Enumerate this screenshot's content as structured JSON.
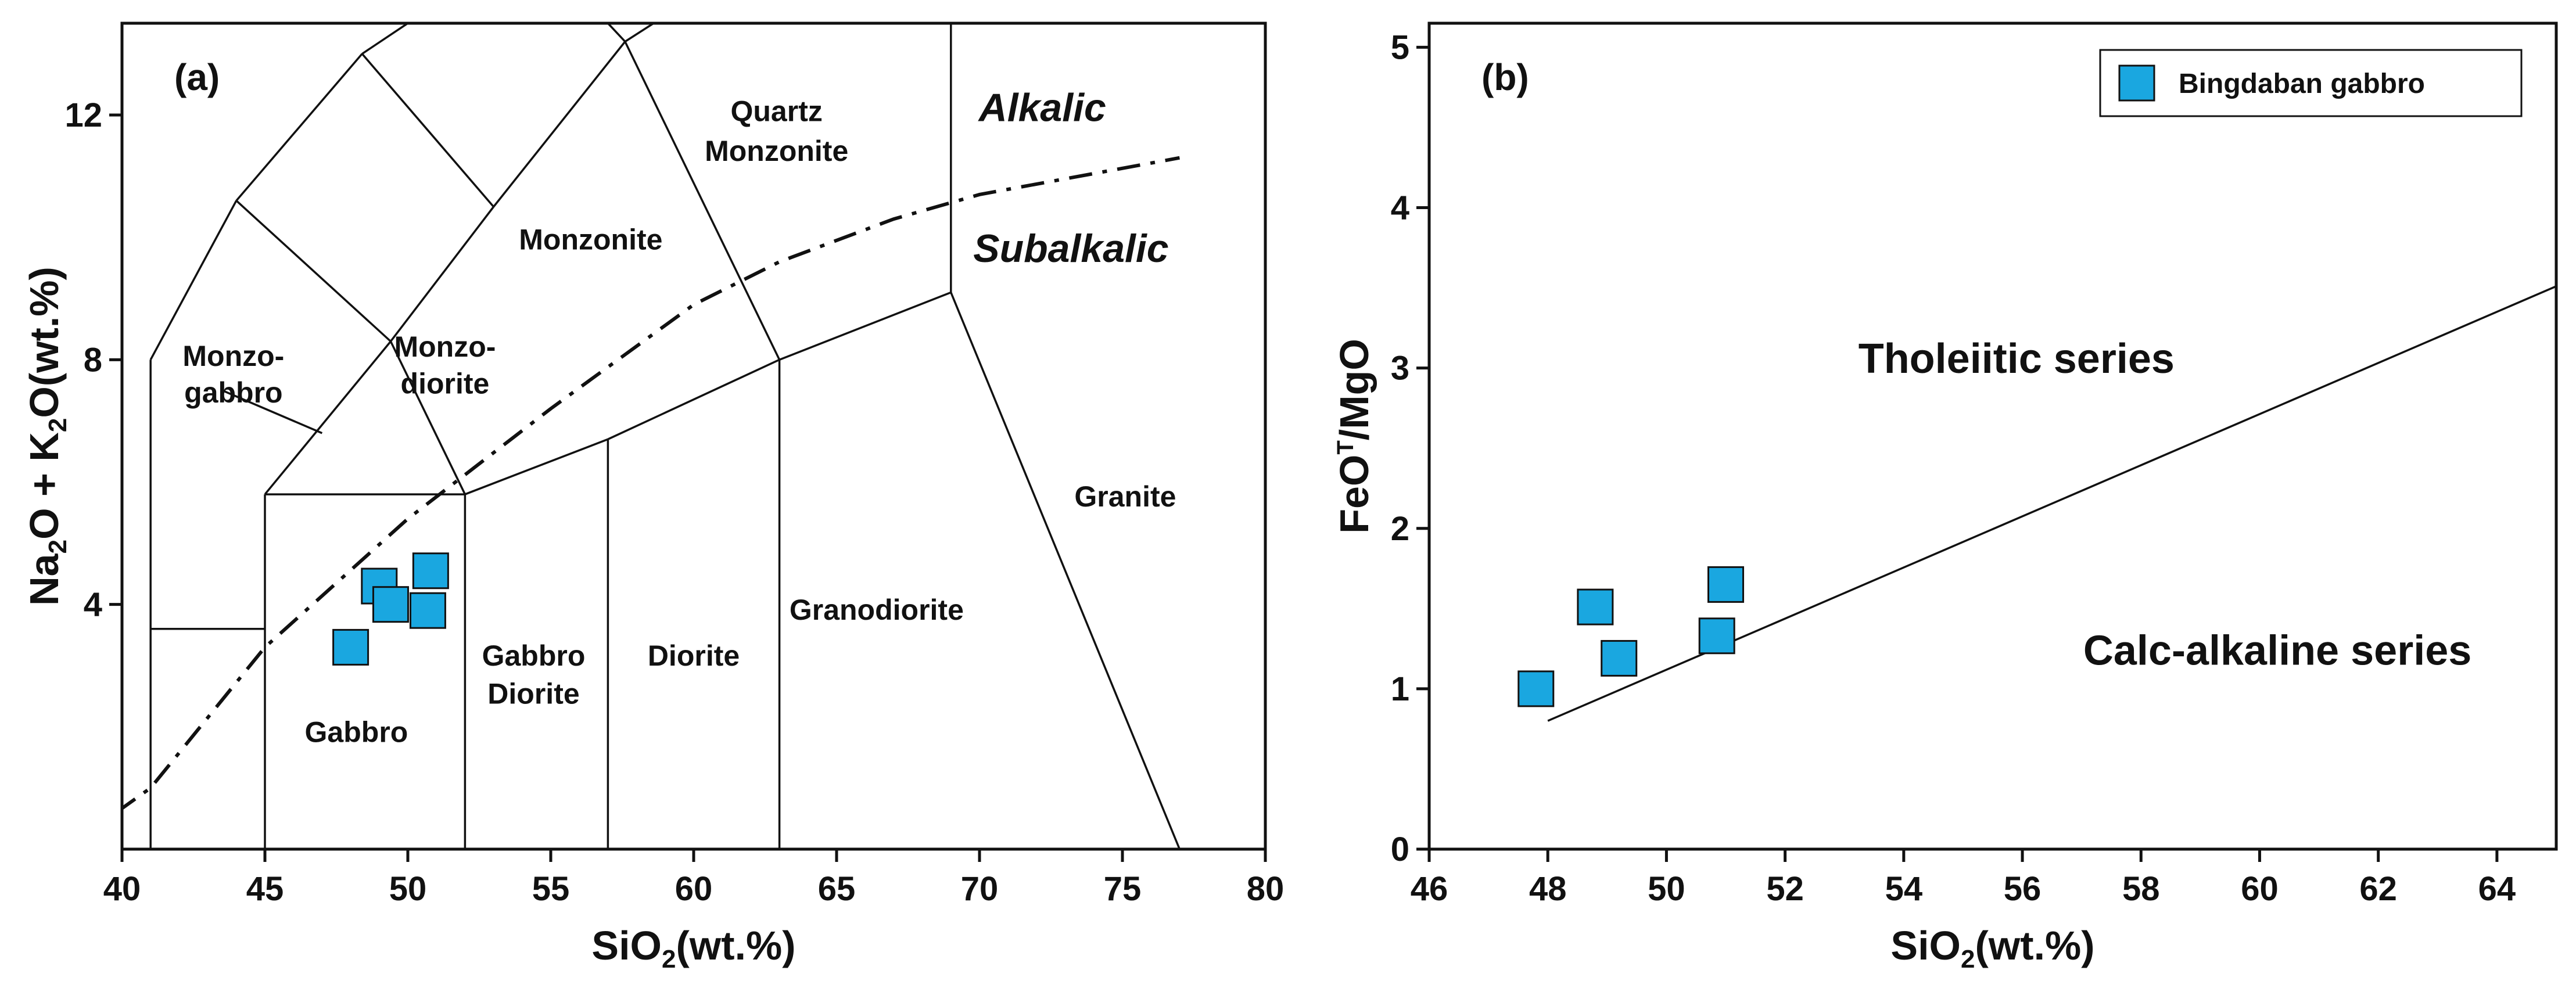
{
  "chart_data": [
    {
      "panel_label": "(a)",
      "type": "scatter",
      "title": "",
      "xlabel": "SiO2(wt.%)",
      "xlabel_main": "SiO",
      "xlabel_sub": "2",
      "xlabel_tail": "(wt.%)",
      "ylabel": "Na2O + K2O(wt.%)",
      "ylabel_parts": [
        "Na",
        "2",
        "O + K",
        "2",
        "O(wt.%)"
      ],
      "xlim": [
        40,
        80
      ],
      "ylim": [
        0,
        13.5
      ],
      "x_ticks": [
        40,
        45,
        50,
        55,
        60,
        65,
        70,
        75,
        80
      ],
      "x_tick_labels": [
        "40",
        "45",
        "50",
        "55",
        "60",
        "65",
        "70",
        "75",
        "80"
      ],
      "y_ticks": [
        4,
        8,
        12
      ],
      "y_tick_labels": [
        "4",
        "8",
        "12"
      ],
      "series": [
        {
          "name": "Bingdaban gabbro",
          "color": "#1aa7e0",
          "x": [
            48.0,
            49.0,
            49.4,
            50.7,
            50.8
          ],
          "y": [
            3.3,
            4.3,
            4.0,
            3.9,
            4.55
          ]
        }
      ],
      "field_boundaries": [
        [
          [
            41,
            0
          ],
          [
            41,
            8
          ]
        ],
        [
          [
            41,
            3.6
          ],
          [
            45,
            3.6
          ]
        ],
        [
          [
            45,
            0
          ],
          [
            45,
            5.8
          ]
        ],
        [
          [
            45,
            5.8
          ],
          [
            52,
            5.8
          ]
        ],
        [
          [
            52,
            0
          ],
          [
            52,
            5.8
          ]
        ],
        [
          [
            57,
            0
          ],
          [
            57,
            6.7
          ]
        ],
        [
          [
            63,
            0
          ],
          [
            63,
            8
          ]
        ],
        [
          [
            69,
            9.1
          ],
          [
            77,
            0
          ]
        ],
        [
          [
            52,
            5.8
          ],
          [
            57,
            6.7
          ]
        ],
        [
          [
            57,
            6.7
          ],
          [
            63,
            8
          ]
        ],
        [
          [
            63,
            8
          ],
          [
            69,
            9.1
          ]
        ],
        [
          [
            69,
            9.1
          ],
          [
            69,
            13.5
          ]
        ],
        [
          [
            41,
            8
          ],
          [
            44,
            10.6
          ]
        ],
        [
          [
            44,
            10.6
          ],
          [
            49.4,
            8.3
          ]
        ],
        [
          [
            45,
            5.8
          ],
          [
            49.4,
            8.3
          ]
        ],
        [
          [
            49.4,
            8.3
          ],
          [
            52,
            5.8
          ]
        ],
        [
          [
            49.4,
            8.3
          ],
          [
            53,
            10.5
          ]
        ],
        [
          [
            53,
            10.5
          ],
          [
            57.6,
            13.2
          ]
        ],
        [
          [
            57.6,
            13.2
          ],
          [
            63,
            8
          ]
        ],
        [
          [
            44,
            10.6
          ],
          [
            48.4,
            13
          ]
        ],
        [
          [
            48.4,
            13
          ],
          [
            53,
            10.5
          ]
        ],
        [
          [
            48.4,
            13
          ],
          [
            50,
            13.5
          ]
        ],
        [
          [
            57.6,
            13.2
          ],
          [
            58.6,
            13.5
          ]
        ],
        [
          [
            57.6,
            13.2
          ],
          [
            57,
            13.5
          ]
        ],
        [
          [
            47,
            6.8
          ],
          [
            43.5,
            7.5
          ]
        ]
      ],
      "alkalic_divider": [
        [
          39.8,
          0.6
        ],
        [
          41,
          1.0
        ],
        [
          45,
          3.3
        ],
        [
          50,
          5.4
        ],
        [
          55,
          7.2
        ],
        [
          60,
          8.9
        ],
        [
          63,
          9.6
        ],
        [
          67,
          10.3
        ],
        [
          70,
          10.7
        ],
        [
          77,
          11.3
        ]
      ],
      "field_labels": [
        {
          "text": "Monzo-",
          "x": 43.9,
          "y": 7.9
        },
        {
          "text": "gabbro",
          "x": 43.9,
          "y": 7.3
        },
        {
          "text": "Monzo-",
          "x": 51.3,
          "y": 8.05
        },
        {
          "text": "diorite",
          "x": 51.3,
          "y": 7.45
        },
        {
          "text": "Monzonite",
          "x": 56.4,
          "y": 9.8
        },
        {
          "text": "Quartz",
          "x": 62.9,
          "y": 11.9
        },
        {
          "text": "Monzonite",
          "x": 62.9,
          "y": 11.25
        },
        {
          "text": "Granite",
          "x": 75.1,
          "y": 5.6
        },
        {
          "text": "Granodiorite",
          "x": 66.4,
          "y": 3.75
        },
        {
          "text": "Diorite",
          "x": 60.0,
          "y": 3.0
        },
        {
          "text": "Gabbro",
          "x": 54.4,
          "y": 3.0
        },
        {
          "text": "Diorite",
          "x": 54.4,
          "y": 2.38
        },
        {
          "text": "Gabbro",
          "x": 48.2,
          "y": 1.75
        }
      ],
      "series_labels": [
        {
          "text": "Alkalic",
          "x": 72.2,
          "y": 11.9
        },
        {
          "text": "Subalkalic",
          "x": 73.2,
          "y": 9.6
        }
      ]
    },
    {
      "panel_label": "(b)",
      "type": "scatter",
      "title": "",
      "xlabel": "SiO2(wt.%)",
      "xlabel_main": "SiO",
      "xlabel_sub": "2",
      "xlabel_tail": "(wt.%)",
      "ylabel": "FeOT/MgO",
      "ylabel_parts": [
        "FeO",
        "T",
        "/MgO"
      ],
      "xlim": [
        46,
        65
      ],
      "ylim": [
        0,
        5.15
      ],
      "x_ticks": [
        46,
        48,
        50,
        52,
        54,
        56,
        58,
        60,
        62,
        64
      ],
      "x_tick_labels": [
        "46",
        "48",
        "50",
        "52",
        "54",
        "56",
        "58",
        "60",
        "62",
        "64"
      ],
      "y_ticks": [
        0,
        1,
        2,
        3,
        4,
        5
      ],
      "y_tick_labels": [
        "0",
        "1",
        "2",
        "3",
        "4",
        "5"
      ],
      "series": [
        {
          "name": "Bingdaban gabbro",
          "color": "#1aa7e0",
          "x": [
            47.8,
            48.8,
            49.2,
            50.85,
            51.0
          ],
          "y": [
            1.0,
            1.51,
            1.19,
            1.33,
            1.65
          ]
        }
      ],
      "divider_line": [
        [
          48.0,
          0.8
        ],
        [
          65.0,
          3.51
        ]
      ],
      "legend": {
        "label": "Bingdaban gabbro",
        "position": "top-right"
      },
      "region_labels": [
        {
          "text": "Tholeiitic series",
          "x": 55.9,
          "y": 2.97
        },
        {
          "text": "Calc-alkaline series",
          "x": 60.3,
          "y": 1.15
        }
      ]
    }
  ]
}
